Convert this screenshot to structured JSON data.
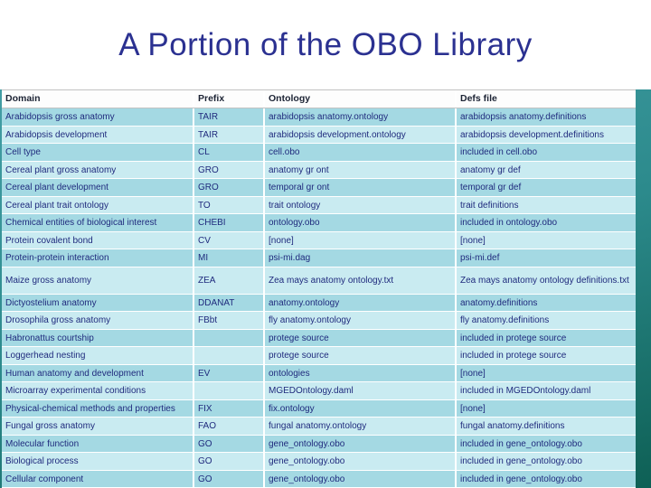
{
  "slide": {
    "title": "A Portion of the OBO Library"
  },
  "table": {
    "columns": [
      "Domain",
      "Prefix",
      "Ontology",
      "Defs file"
    ],
    "rows": [
      {
        "cells": [
          "Arabidopsis gross anatomy",
          "TAIR",
          "arabidopsis anatomy.ontology",
          "arabidopsis anatomy.definitions"
        ]
      },
      {
        "cells": [
          "Arabidopsis development",
          "TAIR",
          "arabidopsis development.ontology",
          "arabidopsis development.definitions"
        ]
      },
      {
        "cells": [
          "Cell type",
          "CL",
          "cell.obo",
          "included in cell.obo"
        ]
      },
      {
        "cells": [
          "Cereal plant gross anatomy",
          "GRO",
          "anatomy gr ont",
          "anatomy gr def"
        ]
      },
      {
        "cells": [
          "Cereal plant development",
          "GRO",
          "temporal gr ont",
          "temporal gr def"
        ]
      },
      {
        "cells": [
          "Cereal plant trait ontology",
          "TO",
          "trait ontology",
          "trait definitions"
        ]
      },
      {
        "cells": [
          "Chemical entities of biological interest",
          "CHEBI",
          "ontology.obo",
          "included in ontology.obo"
        ]
      },
      {
        "cells": [
          "Protein covalent bond",
          "CV",
          "[none]",
          "[none]"
        ]
      },
      {
        "cells": [
          "Protein-protein interaction",
          "MI",
          "psi-mi.dag",
          "psi-mi.def"
        ]
      },
      {
        "cells": [
          "Maize gross anatomy",
          "ZEA",
          "Zea mays anatomy ontology.txt",
          "Zea mays anatomy ontology definitions.txt"
        ],
        "tall": true
      },
      {
        "cells": [
          "Dictyostelium anatomy",
          "DDANAT",
          "anatomy.ontology",
          "anatomy.definitions"
        ]
      },
      {
        "cells": [
          "Drosophila gross anatomy",
          "FBbt",
          "fly anatomy.ontology",
          "fly anatomy.definitions"
        ]
      },
      {
        "cells": [
          "Habronattus courtship",
          "",
          "protege source",
          "included in protege source"
        ]
      },
      {
        "cells": [
          "Loggerhead nesting",
          "",
          "protege source",
          "included in protege source"
        ]
      },
      {
        "cells": [
          "Human anatomy and development",
          "EV",
          "ontologies",
          "[none]"
        ]
      },
      {
        "cells": [
          "Microarray experimental conditions",
          "",
          "MGEDOntology.daml",
          "included in MGEDOntology.daml"
        ]
      },
      {
        "cells": [
          "Physical-chemical methods and properties",
          "FIX",
          "fix.ontology",
          "[none]"
        ]
      },
      {
        "cells": [
          "Fungal gross anatomy",
          "FAO",
          "fungal anatomy.ontology",
          "fungal anatomy.definitions"
        ]
      },
      {
        "cells": [
          "Molecular function",
          "GO",
          "gene_ontology.obo",
          "included in gene_ontology.obo"
        ]
      },
      {
        "cells": [
          "Biological process",
          "GO",
          "gene_ontology.obo",
          "included in gene_ontology.obo"
        ]
      },
      {
        "cells": [
          "Cellular component",
          "GO",
          "gene_ontology.obo",
          "included in gene_ontology.obo"
        ]
      }
    ]
  },
  "colors": {
    "slide_top": "#4aa4ac",
    "slide_bottom": "#0e6055",
    "title": "#2b3191",
    "text": "#1f2a7d",
    "header_bg": "#fdfdfd",
    "row_dark": "#a4d9e3",
    "row_light": "#c9ebf1"
  }
}
